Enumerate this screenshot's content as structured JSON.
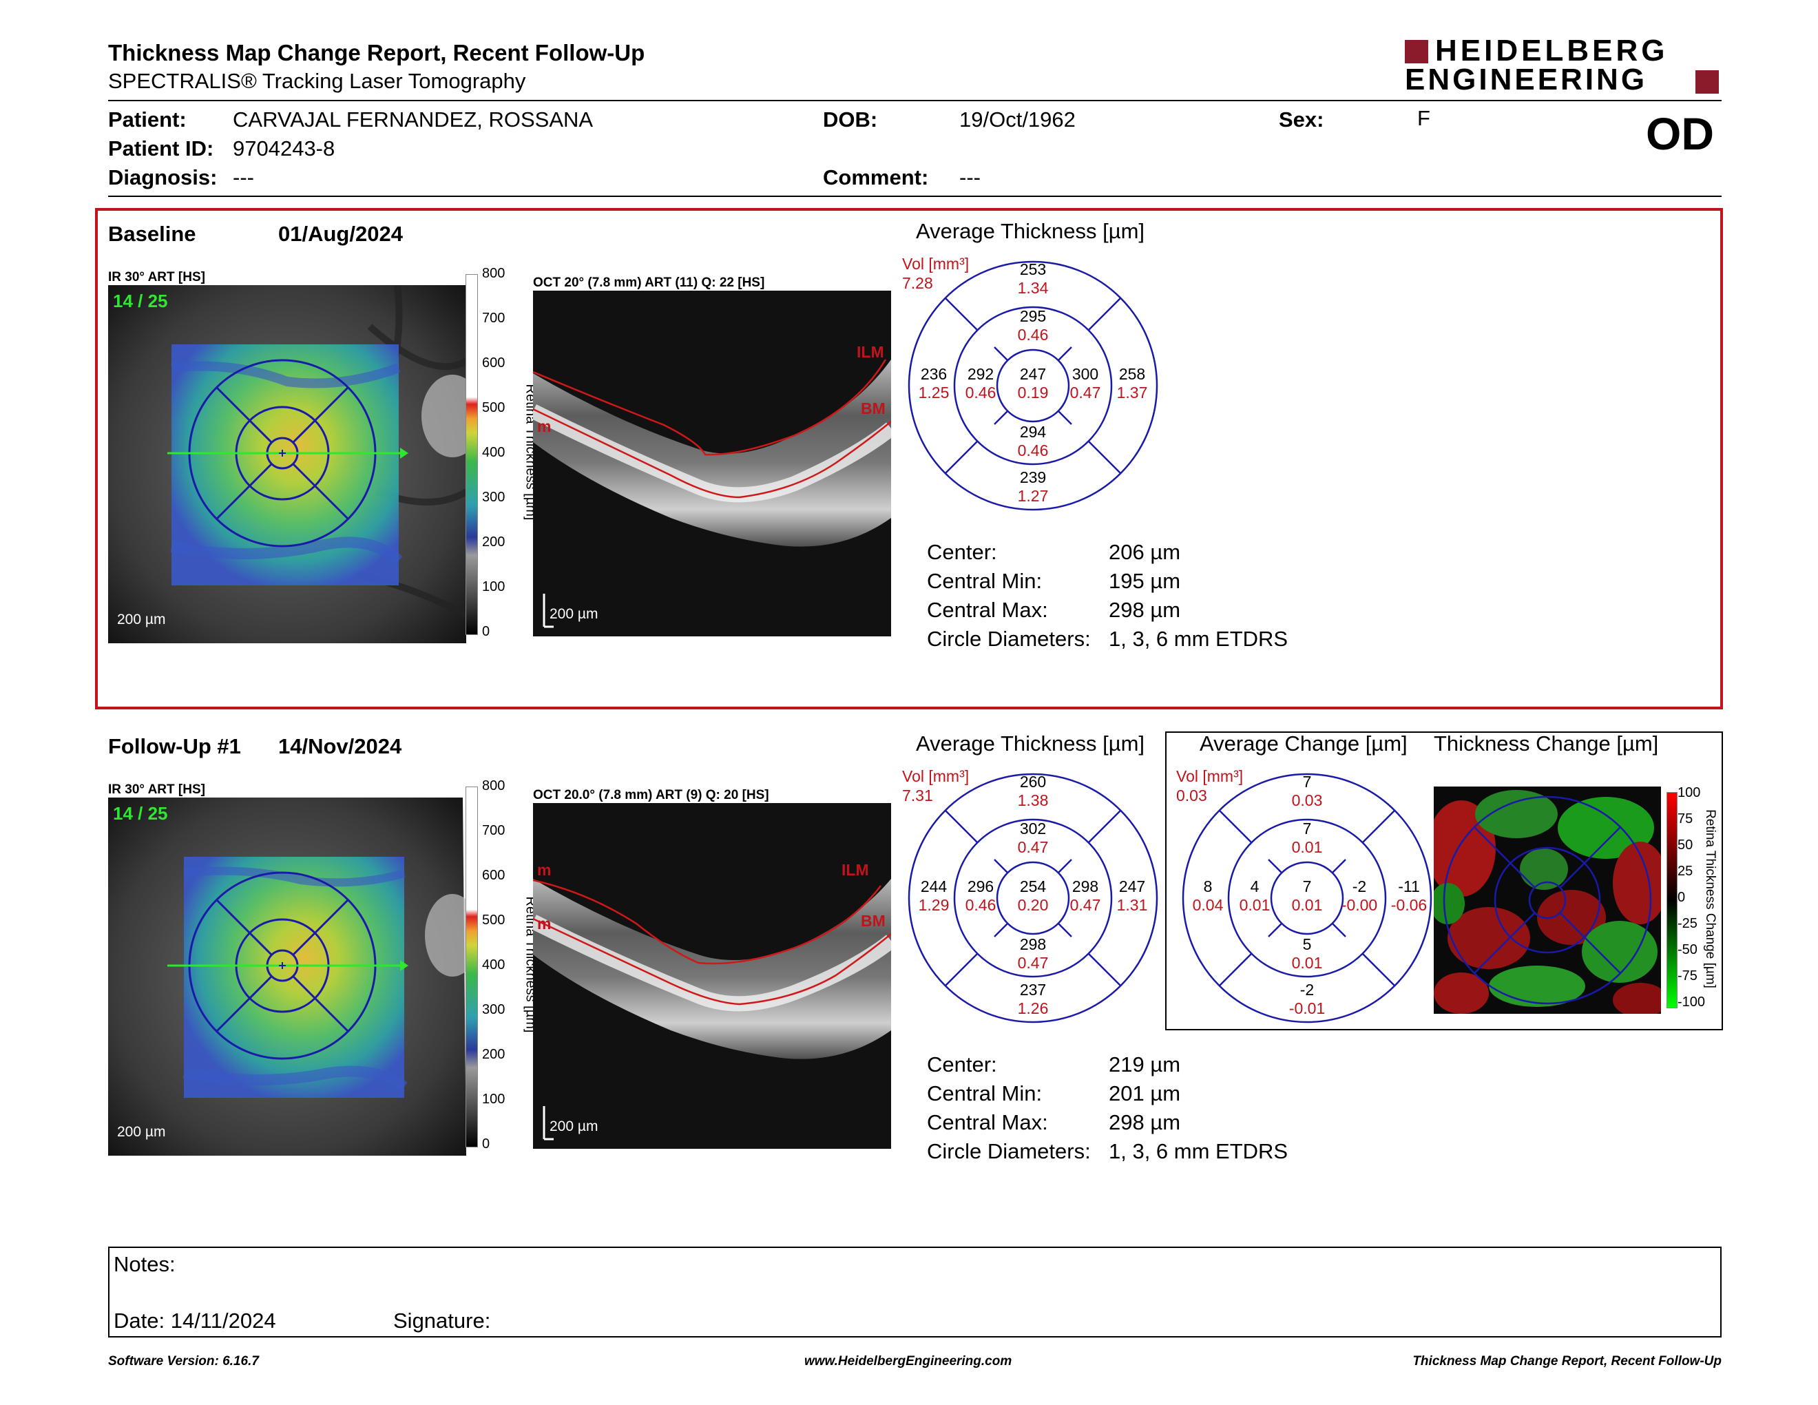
{
  "header": {
    "title": "Thickness Map Change Report, Recent Follow-Up",
    "subtitle": "SPECTRALIS® Tracking Laser Tomography",
    "brand_line1": "HEIDELBERG",
    "brand_line2": "ENGINEERING",
    "eye": "OD"
  },
  "patient": {
    "patient_label": "Patient:",
    "patient_value": "CARVAJAL  FERNANDEZ, ROSSANA",
    "id_label": "Patient ID:",
    "id_value": "9704243-8",
    "diagnosis_label": "Diagnosis:",
    "diagnosis_value": "---",
    "dob_label": "DOB:",
    "dob_value": "19/Oct/1962",
    "comment_label": "Comment:",
    "comment_value": "---",
    "sex_label": "Sex:",
    "sex_value": "F"
  },
  "baseline": {
    "label": "Baseline",
    "date": "01/Aug/2024",
    "ir_label": "IR 30° ART [HS]",
    "frame": "14 / 25",
    "scale": "200 µm",
    "oct_label": "OCT 20° (7.8 mm) ART (11) Q: 22 [HS]",
    "oct_scale": "200 µm",
    "ilm": "ILM",
    "bm": "BM",
    "m": "m",
    "avg_title": "Average Thickness [µm]",
    "vol_label": "Vol [mm³]",
    "vol_value": "7.28",
    "etdrs": {
      "center": {
        "t": "247",
        "v": "0.19"
      },
      "inner_sup": {
        "t": "295",
        "v": "0.46"
      },
      "inner_inf": {
        "t": "294",
        "v": "0.46"
      },
      "inner_nas": {
        "t": "292",
        "v": "0.46"
      },
      "inner_tmp": {
        "t": "300",
        "v": "0.47"
      },
      "outer_sup": {
        "t": "253",
        "v": "1.34"
      },
      "outer_inf": {
        "t": "239",
        "v": "1.27"
      },
      "outer_nas": {
        "t": "236",
        "v": "1.25"
      },
      "outer_tmp": {
        "t": "258",
        "v": "1.37"
      }
    },
    "stats": {
      "center_label": "Center:",
      "center_value": "206 µm",
      "min_label": "Central Min:",
      "min_value": "195 µm",
      "max_label": "Central Max:",
      "max_value": "298 µm",
      "diam_label": "Circle Diameters:",
      "diam_value": "1, 3, 6 mm ETDRS"
    }
  },
  "followup": {
    "label": "Follow-Up #1",
    "date": "14/Nov/2024",
    "ir_label": "IR 30° ART [HS]",
    "frame": "14 / 25",
    "scale": "200 µm",
    "oct_label": "OCT 20.0° (7.8 mm) ART (9) Q: 20 [HS]",
    "oct_scale": "200 µm",
    "ilm": "ILM",
    "bm": "BM",
    "m": "m",
    "m2": "m",
    "avg_title": "Average Thickness [µm]",
    "vol_label": "Vol [mm³]",
    "vol_value": "7.31",
    "etdrs": {
      "center": {
        "t": "254",
        "v": "0.20"
      },
      "inner_sup": {
        "t": "302",
        "v": "0.47"
      },
      "inner_inf": {
        "t": "298",
        "v": "0.47"
      },
      "inner_nas": {
        "t": "296",
        "v": "0.46"
      },
      "inner_tmp": {
        "t": "298",
        "v": "0.47"
      },
      "outer_sup": {
        "t": "260",
        "v": "1.38"
      },
      "outer_inf": {
        "t": "237",
        "v": "1.26"
      },
      "outer_nas": {
        "t": "244",
        "v": "1.29"
      },
      "outer_tmp": {
        "t": "247",
        "v": "1.31"
      }
    },
    "change_title": "Average Change [µm]",
    "change_vol_label": "Vol [mm³]",
    "change_vol_value": "0.03",
    "change": {
      "center": {
        "t": "7",
        "v": "0.01"
      },
      "inner_sup": {
        "t": "7",
        "v": "0.01"
      },
      "inner_inf": {
        "t": "5",
        "v": "0.01"
      },
      "inner_nas": {
        "t": "4",
        "v": "0.01"
      },
      "inner_tmp": {
        "t": "-2",
        "v": "-0.00"
      },
      "outer_sup": {
        "t": "7",
        "v": "0.03"
      },
      "outer_inf": {
        "t": "-2",
        "v": "-0.01"
      },
      "outer_nas": {
        "t": "8",
        "v": "0.04"
      },
      "outer_tmp": {
        "t": "-11",
        "v": "-0.06"
      }
    },
    "thickness_change_title": "Thickness Change [µm]",
    "stats": {
      "center_label": "Center:",
      "center_value": "219 µm",
      "min_label": "Central Min:",
      "min_value": "201 µm",
      "max_label": "Central Max:",
      "max_value": "298 µm",
      "diam_label": "Circle Diameters:",
      "diam_value": "1, 3, 6 mm ETDRS"
    }
  },
  "thickness_scale": {
    "axis_label": "Retina Thickness [µm]",
    "ticks": [
      "800",
      "700",
      "600",
      "500",
      "400",
      "300",
      "200",
      "100",
      "0"
    ]
  },
  "change_scale": {
    "axis_label": "Retina Thickness Change [µm]",
    "ticks": [
      "100",
      "75",
      "50",
      "25",
      "0",
      "-25",
      "-50",
      "-75",
      "-100"
    ]
  },
  "notes": {
    "notes_label": "Notes:",
    "date_label": "Date: 14/11/2024",
    "signature_label": "Signature:"
  },
  "footer": {
    "software": "Software Version: 6.16.7",
    "website": "www.HeidelbergEngineering.com",
    "report": "Thickness Map Change Report, Recent Follow-Up"
  },
  "colors": {
    "accent_red": "#c0141c",
    "brand_red": "#8b1a2b",
    "etdrs_blue": "#1a1aa8"
  }
}
